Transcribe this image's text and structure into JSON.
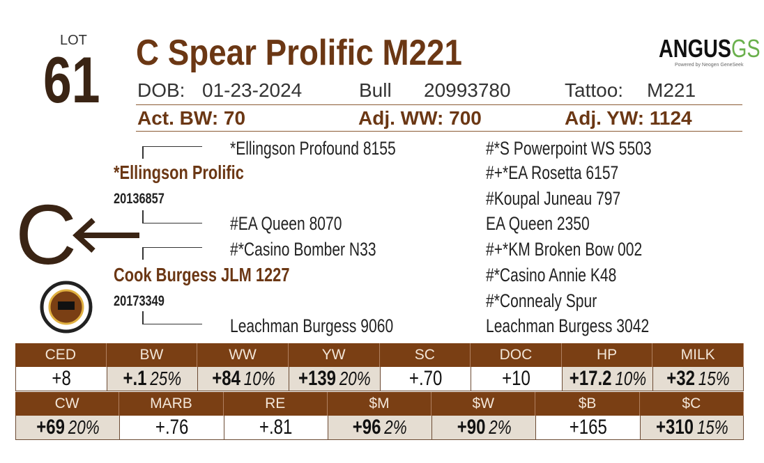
{
  "lot": {
    "label": "LOT",
    "number": "61"
  },
  "title": "C Spear Prolific M221",
  "logo": {
    "main": "ANGUS",
    "accent": "GS",
    "tagline": "Powered by Neogen GeneSeek"
  },
  "info": {
    "dob_label": "DOB:",
    "dob": "01-23-2024",
    "sex": "Bull",
    "registration": "20993780",
    "tattoo_label": "Tattoo:",
    "tattoo": "M221"
  },
  "weights": [
    "Act. BW: 70",
    "Adj. WW: 700",
    "Adj. YW: 1124"
  ],
  "mark": "C",
  "pedigree": {
    "sire": {
      "name": "*Ellingson Prolific",
      "registration": "20136857"
    },
    "dam": {
      "name": "Cook Burgess JLM 1227",
      "registration": "20173349"
    },
    "sire_sire": "*Ellingson Profound 8155",
    "sire_dam": "#EA Queen 8070",
    "dam_sire": "#*Casino Bomber N33",
    "dam_dam": "Leachman Burgess 9060",
    "outer": [
      "#*S Powerpoint WS 5503",
      "#+*EA Rosetta 6157",
      "#Koupal Juneau 797",
      "EA Queen 2350",
      "#+*KM Broken Bow 002",
      "#*Casino Annie K48",
      "#*Connealy Spur",
      "Leachman Burgess 3042"
    ]
  },
  "epd_rows": [
    {
      "headers": [
        "CED",
        "BW",
        "WW",
        "YW",
        "SC",
        "DOC",
        "HP",
        "MILK"
      ],
      "cells": [
        {
          "value": "+8"
        },
        {
          "value": "+.1",
          "pct": "25%"
        },
        {
          "value": "+84",
          "pct": "10%"
        },
        {
          "value": "+139",
          "pct": "20%"
        },
        {
          "value": "+.70"
        },
        {
          "value": "+10"
        },
        {
          "value": "+17.2",
          "pct": "10%"
        },
        {
          "value": "+32",
          "pct": "15%"
        }
      ]
    },
    {
      "headers": [
        "CW",
        "MARB",
        "RE",
        "$M",
        "$W",
        "$B",
        "$C"
      ],
      "cells": [
        {
          "value": "+69",
          "pct": "20%"
        },
        {
          "value": "+.76"
        },
        {
          "value": "+.81"
        },
        {
          "value": "+96",
          "pct": "2%"
        },
        {
          "value": "+90",
          "pct": "2%"
        },
        {
          "value": "+165"
        },
        {
          "value": "+310",
          "pct": "15%"
        }
      ]
    }
  ]
}
